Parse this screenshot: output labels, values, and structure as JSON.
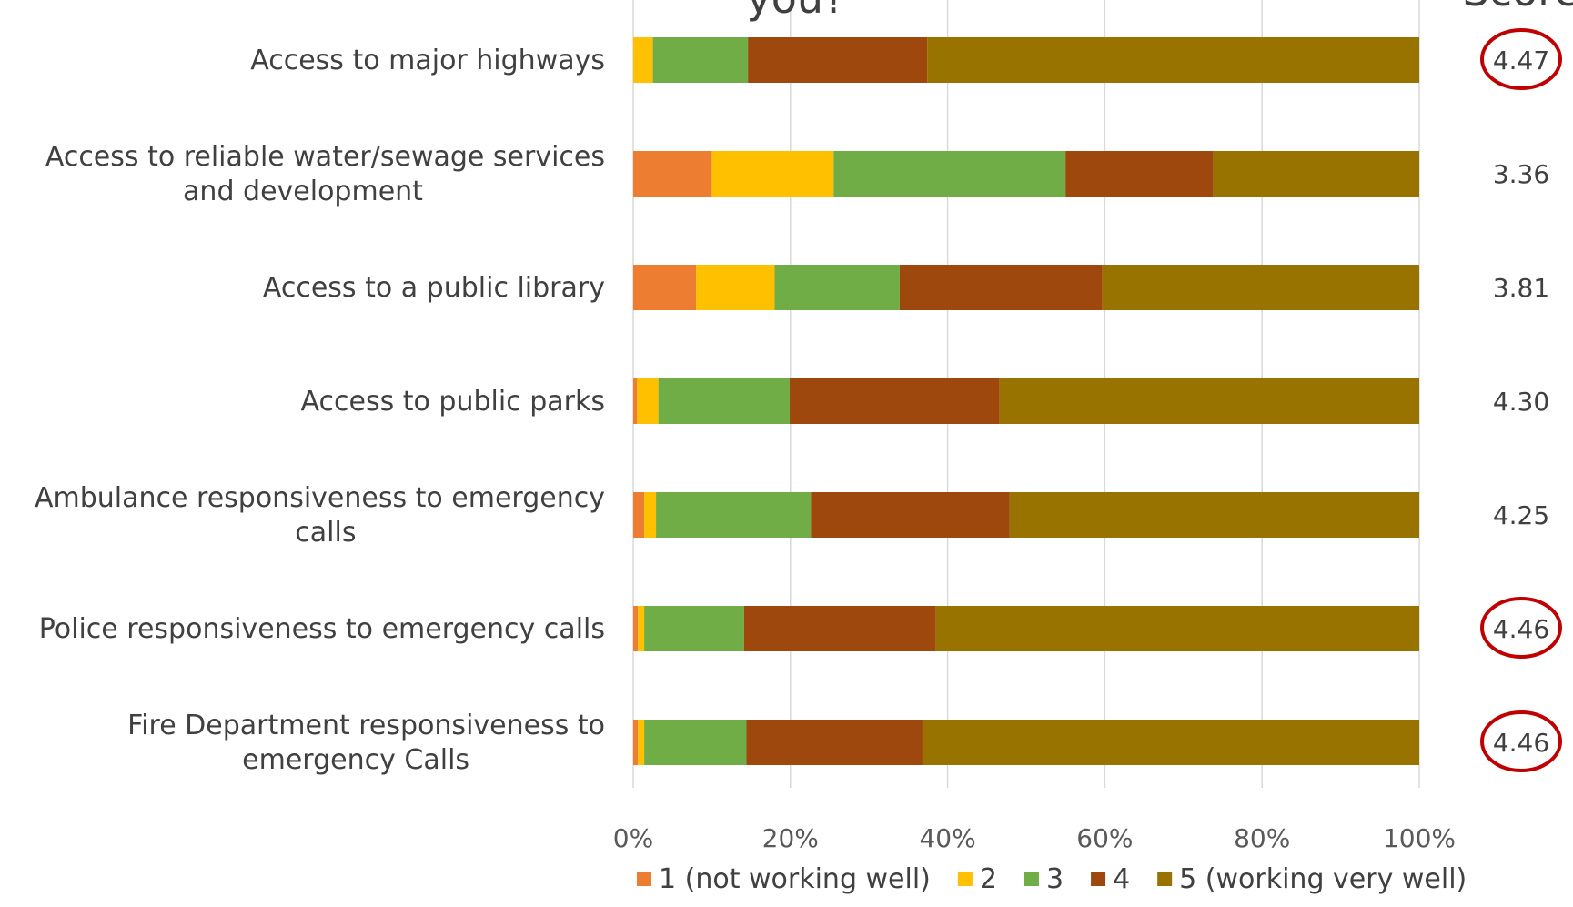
{
  "chart_data": {
    "type": "bar",
    "orientation": "horizontal",
    "stacked": "percent",
    "title_fragment": "you?",
    "column_header_fragment": "Score",
    "categories": [
      "Access to major highways",
      "Access to reliable water/sewage services and development",
      "Access to a public library",
      "Access to public parks",
      "Ambulance responsiveness to emergency calls",
      "Police responsiveness to emergency calls",
      "Fire Department responsiveness to emergency Calls"
    ],
    "category_lines": [
      [
        "Access to major highways"
      ],
      [
        "Access to reliable water/sewage services",
        "and development"
      ],
      [
        "Access to a public library"
      ],
      [
        "Access to public parks"
      ],
      [
        "Ambulance responsiveness to emergency",
        "calls"
      ],
      [
        "Police responsiveness to emergency calls"
      ],
      [
        "Fire Department responsiveness to",
        "emergency Calls"
      ]
    ],
    "series": [
      {
        "name": "1 (not working well)",
        "color": "#ED7D31",
        "values": [
          0,
          10,
          8,
          0.5,
          1.4,
          0.6,
          0.6
        ]
      },
      {
        "name": "2",
        "color": "#FFC000",
        "values": [
          2.5,
          15.5,
          10,
          2.7,
          1.5,
          0.8,
          0.8
        ]
      },
      {
        "name": "3",
        "color": "#70AD47",
        "values": [
          12.1,
          29.5,
          15.9,
          16.7,
          19.7,
          12.7,
          13
        ]
      },
      {
        "name": "4",
        "color": "#9E480E",
        "values": [
          22.8,
          18.8,
          25.8,
          26.7,
          25.3,
          24.4,
          22.4
        ]
      },
      {
        "name": "5 (working very well)",
        "color": "#997300",
        "values": [
          62.6,
          26.2,
          40.3,
          53.4,
          52.1,
          61.5,
          63.2
        ]
      }
    ],
    "scores": [
      "4.47",
      "3.36",
      "3.81",
      "4.30",
      "4.25",
      "4.46",
      "4.46"
    ],
    "highlighted_scores": [
      0,
      5,
      6
    ],
    "highlight_color": "#C00000",
    "xlim": [
      0,
      100
    ],
    "x_ticks": [
      "0%",
      "20%",
      "40%",
      "60%",
      "80%",
      "100%"
    ],
    "grid": true,
    "legend_position": "bottom"
  }
}
